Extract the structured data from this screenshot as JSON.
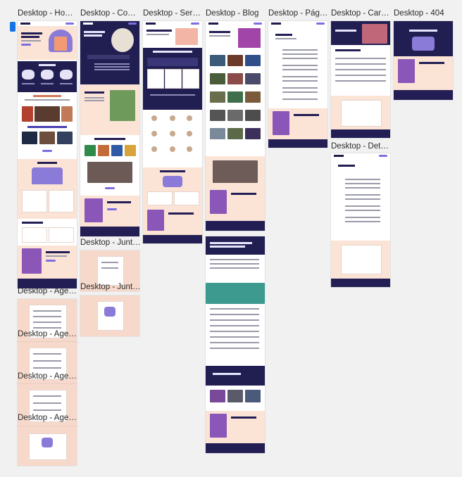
{
  "canvas": {
    "selected_artboard": "Desktop - Home"
  },
  "artboards": {
    "home": {
      "label": "Desktop - Hom…"
    },
    "comunidade": {
      "label": "Desktop - Com…"
    },
    "servicos": {
      "label": "Desktop - Servi…"
    },
    "blog": {
      "label": "Desktop - Blog"
    },
    "pagina": {
      "label": "Desktop - Pági…"
    },
    "carreira": {
      "label": "Desktop - Carr…"
    },
    "not_found": {
      "label": "Desktop - 404"
    },
    "junte1": {
      "label": "Desktop - Junt…"
    },
    "junte2": {
      "label": "Desktop - Junt…"
    },
    "detalhe": {
      "label": "Desktop - Deta…"
    },
    "agenda1": {
      "label": "Desktop - Age…"
    },
    "agenda2": {
      "label": "Desktop - Age…"
    },
    "agenda3": {
      "label": "Desktop - Age…"
    },
    "agenda4": {
      "label": "Desktop - Age…"
    }
  },
  "colors": {
    "dark_navy": "#211f52",
    "peach": "#fbe3d6",
    "accent_purple": "#7b6ee0",
    "selection_blue": "#1473e6"
  }
}
